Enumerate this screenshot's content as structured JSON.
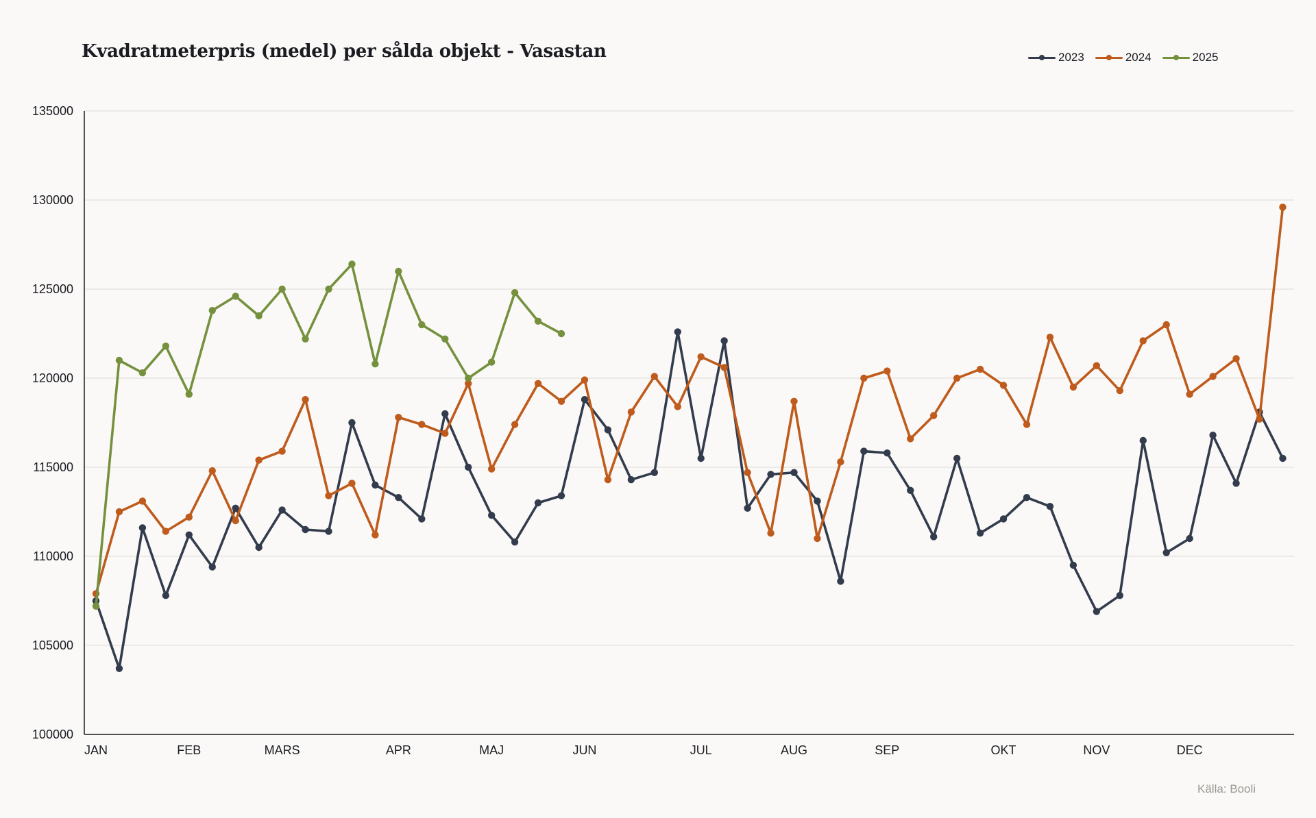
{
  "chart_data": {
    "type": "line",
    "title": "Kvadratmeterpris (medel) per sålda objekt - Vasastan",
    "source": "Källa: Booli",
    "xlabel": "",
    "ylabel": "",
    "ylim": [
      100000,
      135000
    ],
    "yticks": [
      100000,
      105000,
      110000,
      115000,
      120000,
      125000,
      130000,
      135000
    ],
    "ytick_labels": [
      "100000",
      "105000",
      "110000",
      "115000",
      "120000",
      "125000",
      "130000",
      "135000"
    ],
    "x_range": [
      1,
      53
    ],
    "month_ticks": [
      {
        "label": "JAN",
        "week": 1
      },
      {
        "label": "FEB",
        "week": 5
      },
      {
        "label": "MARS",
        "week": 9
      },
      {
        "label": "APR",
        "week": 14
      },
      {
        "label": "MAJ",
        "week": 18
      },
      {
        "label": "JUN",
        "week": 22
      },
      {
        "label": "JUL",
        "week": 27
      },
      {
        "label": "AUG",
        "week": 31
      },
      {
        "label": "SEP",
        "week": 35
      },
      {
        "label": "OKT",
        "week": 40
      },
      {
        "label": "NOV",
        "week": 44
      },
      {
        "label": "DEC",
        "week": 48
      }
    ],
    "grid": true,
    "legend_position": "top-right",
    "series": [
      {
        "name": "2023",
        "color": "#333c4d",
        "values": [
          107500,
          103700,
          111600,
          107800,
          111200,
          109400,
          112700,
          110500,
          112600,
          111500,
          111400,
          117500,
          114000,
          113300,
          112100,
          118000,
          115000,
          112300,
          110800,
          113000,
          113400,
          118800,
          117100,
          114300,
          114700,
          122600,
          115500,
          122100,
          112700,
          114600,
          114700,
          113100,
          108600,
          115900,
          115800,
          113700,
          111100,
          115500,
          111300,
          112100,
          113300,
          112800,
          109500,
          106900,
          107800,
          116500,
          110200,
          111000,
          116800,
          114100,
          118100,
          115500
        ]
      },
      {
        "name": "2024",
        "color": "#bf5b1c",
        "values": [
          107900,
          112500,
          113100,
          111400,
          112200,
          114800,
          112000,
          115400,
          115900,
          118800,
          113400,
          114100,
          111200,
          117800,
          117400,
          116900,
          119700,
          114900,
          117400,
          119700,
          118700,
          119900,
          114300,
          118100,
          120100,
          118400,
          121200,
          120600,
          114700,
          111300,
          118700,
          111000,
          115300,
          120000,
          120400,
          116600,
          117900,
          120000,
          120500,
          119600,
          117400,
          122300,
          119500,
          120700,
          119300,
          122100,
          123000,
          119100,
          120100,
          121100,
          117700,
          129600
        ]
      },
      {
        "name": "2025",
        "color": "#75913e",
        "values": [
          107200,
          121000,
          120300,
          121800,
          119100,
          123800,
          124600,
          123500,
          125000,
          122200,
          125000,
          126400,
          120800,
          126000,
          123000,
          122200,
          120000,
          120900,
          124800,
          123200,
          122500
        ]
      }
    ]
  }
}
